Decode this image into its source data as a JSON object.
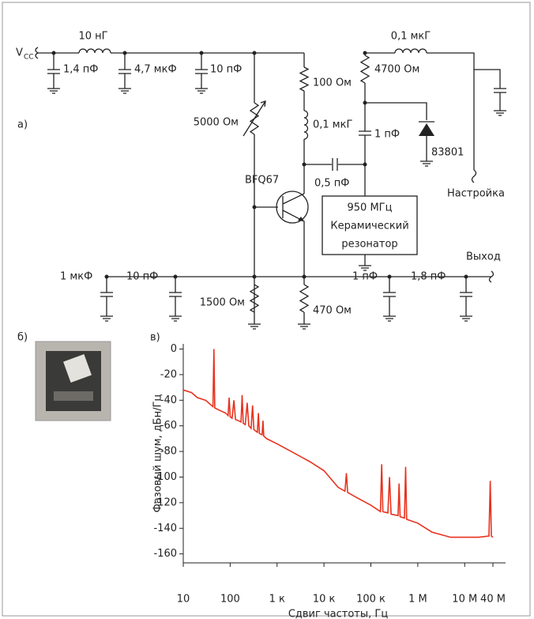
{
  "circuit": {
    "panel_label": "а)",
    "vcc": "V",
    "vcc_sub": "CC",
    "labels": [
      "10 нГ",
      "1,4 пФ",
      "4,7 мкФ",
      "10 пФ",
      "0,1 мкГ",
      "4700 Ом",
      "100 Ом",
      "5000 Ом",
      "0,1 мкГ",
      "1 пФ",
      "83801",
      "BFQ67",
      "0,5 пФ",
      "950 МГц",
      "Керамический",
      "резонатор",
      "Настройка",
      "Выход",
      "1 мкФ",
      "10 пФ",
      "1500 Ом",
      "470 Ом",
      "1 пФ",
      "1,8 пФ"
    ]
  },
  "photo_label": "б)",
  "chart_data": {
    "type": "line",
    "panel_label": "в)",
    "x_label": "Сдвиг частоты, Гц",
    "y_label": "Фазовый шум, дБн/Гц",
    "x_scale": "log",
    "xlim": [
      10,
      40000000
    ],
    "ylim": [
      -167,
      4
    ],
    "xticks": [
      10,
      100,
      {
        "value": 1000,
        "label": "1 к"
      },
      {
        "value": 10000,
        "label": "10 к"
      },
      {
        "value": 100000,
        "label": "100 к"
      },
      {
        "value": 1000000,
        "label": "1 М"
      },
      {
        "value": 10000000,
        "label": "10 М"
      },
      {
        "value": 40000000,
        "label": "40 М"
      }
    ],
    "yticks": [
      0,
      -20,
      -40,
      -60,
      -80,
      -100,
      -120,
      -140,
      -160
    ],
    "series": [
      {
        "color": "#e8321e",
        "x": [
          10,
          15,
          20,
          30,
          40,
          43,
          45,
          47,
          60,
          80,
          90,
          95,
          100,
          110,
          120,
          130,
          150,
          170,
          180,
          190,
          210,
          230,
          250,
          280,
          300,
          320,
          380,
          400,
          420,
          480,
          500,
          520,
          600,
          1000,
          2000,
          5000,
          10000,
          20000,
          28000,
          30000,
          32000,
          50000,
          100000,
          160000,
          170000,
          180000,
          230000,
          250000,
          270000,
          380000,
          400000,
          420000,
          520000,
          550000,
          580000,
          1000000,
          2000000,
          5000000,
          10000000,
          20000000,
          33000000,
          35000000,
          37000000,
          40000000
        ],
        "values": [
          -32,
          -34,
          -38,
          -40,
          -44,
          -45,
          0,
          -46,
          -48,
          -50,
          -52,
          -38,
          -53,
          -54,
          -40,
          -55,
          -56,
          -57,
          -36,
          -58,
          -59,
          -42,
          -60,
          -62,
          -44,
          -63,
          -65,
          -50,
          -66,
          -67,
          -56,
          -68,
          -70,
          -74,
          -80,
          -88,
          -95,
          -108,
          -111,
          -97,
          -112,
          -116,
          -122,
          -127,
          -90,
          -127,
          -128,
          -100,
          -129,
          -130,
          -105,
          -131,
          -132,
          -92,
          -133,
          -136,
          -143,
          -147,
          -147,
          -147,
          -146,
          -103,
          -146,
          -147
        ]
      }
    ]
  }
}
